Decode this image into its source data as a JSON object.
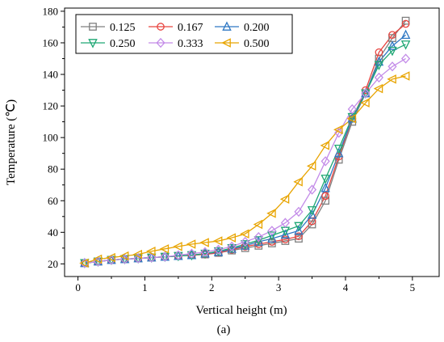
{
  "chart_data": {
    "type": "line",
    "xlabel": "Vertical height (m)",
    "ylabel": "Temperature (℃)",
    "xlim": [
      -0.2,
      5.4
    ],
    "ylim": [
      12,
      182
    ],
    "xticks": [
      0,
      1,
      2,
      3,
      4,
      5
    ],
    "yticks": [
      20,
      40,
      60,
      80,
      100,
      120,
      140,
      160,
      180
    ],
    "grid": false,
    "legend_position": "top-left",
    "caption": "(a)",
    "x": [
      0.1,
      0.3,
      0.5,
      0.7,
      0.9,
      1.1,
      1.3,
      1.5,
      1.7,
      1.9,
      2.1,
      2.3,
      2.5,
      2.7,
      2.9,
      3.1,
      3.3,
      3.5,
      3.7,
      3.9,
      4.1,
      4.3,
      4.5,
      4.7,
      4.9
    ],
    "series": [
      {
        "name": "0.125",
        "color": "#7f7f7f",
        "marker": "square",
        "values": [
          20.5,
          21.5,
          22.5,
          23,
          23.5,
          24,
          24.5,
          25,
          25.5,
          26,
          27,
          28.5,
          30,
          31.5,
          33,
          34.5,
          36,
          45,
          60,
          86,
          110,
          128,
          150,
          163,
          174
        ]
      },
      {
        "name": "0.167",
        "color": "#e8433f",
        "marker": "circle",
        "values": [
          20.5,
          21.5,
          22.5,
          23,
          23.5,
          24,
          24.5,
          25,
          25.5,
          26,
          27,
          29,
          31,
          32.5,
          34,
          35.5,
          37.5,
          47,
          63,
          88,
          112,
          130,
          154,
          165,
          172
        ]
      },
      {
        "name": "0.200",
        "color": "#2f78c4",
        "marker": "triangle-up",
        "values": [
          20.5,
          21.5,
          22.5,
          23,
          23.5,
          24,
          24.5,
          25,
          25.5,
          26.5,
          27.5,
          29.5,
          31.5,
          34,
          36,
          38.5,
          41,
          51,
          68,
          90,
          112,
          128,
          148,
          158,
          165
        ]
      },
      {
        "name": "0.250",
        "color": "#1fa774",
        "marker": "triangle-down",
        "values": [
          20.5,
          21.5,
          22.5,
          23,
          23.5,
          24,
          24.5,
          25,
          25.5,
          26.5,
          28,
          30,
          32.5,
          35,
          38,
          41,
          44,
          54,
          74,
          93,
          113,
          128,
          146,
          155,
          159
        ]
      },
      {
        "name": "0.333",
        "color": "#c38be8",
        "marker": "diamond",
        "values": [
          20.5,
          21.5,
          22.5,
          23,
          23.5,
          24,
          24.5,
          25.5,
          26.5,
          27.5,
          29,
          31,
          34,
          37,
          41,
          46,
          53,
          67,
          85,
          103,
          118,
          128,
          138,
          145,
          150
        ]
      },
      {
        "name": "0.500",
        "color": "#e8a400",
        "marker": "triangle-left",
        "values": [
          20.5,
          23,
          24,
          25,
          26,
          28,
          29.5,
          31,
          32.5,
          33.5,
          34.5,
          36.5,
          39,
          45,
          52,
          61,
          72,
          82,
          95,
          105,
          112,
          122,
          131,
          137,
          139
        ]
      }
    ]
  }
}
